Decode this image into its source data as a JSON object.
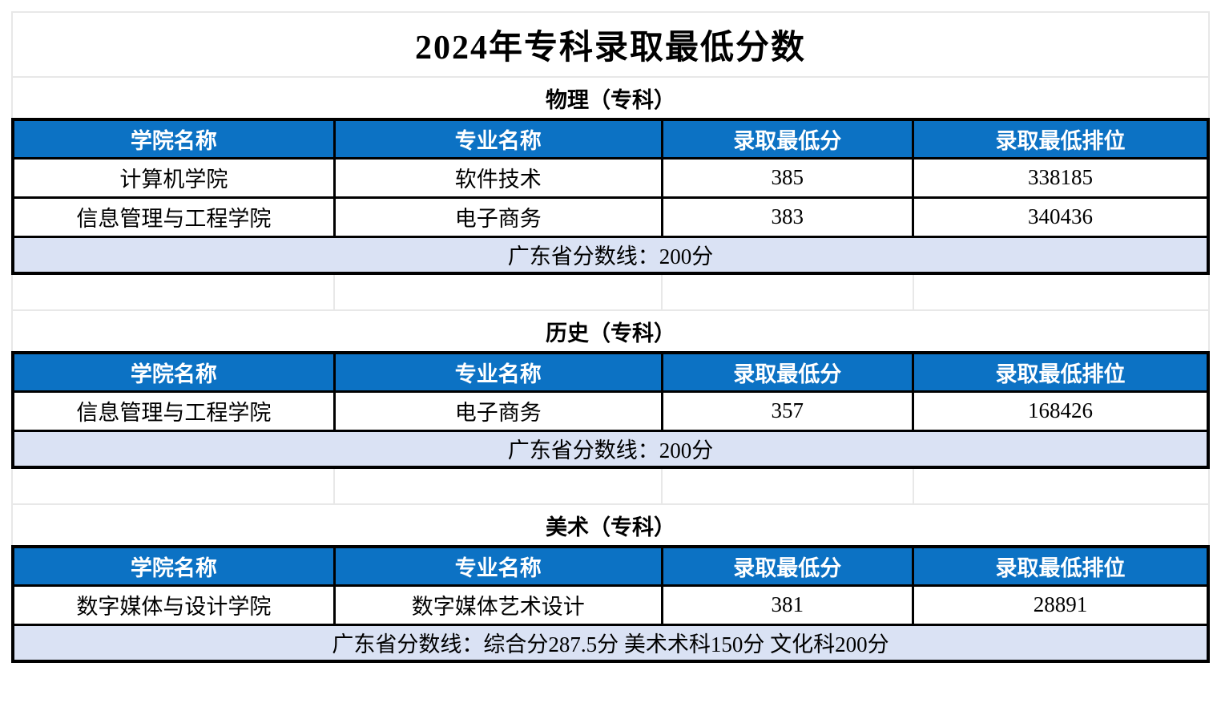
{
  "title": "2024年专科录取最低分数",
  "columns": [
    "学院名称",
    "专业名称",
    "录取最低分",
    "录取最低排位"
  ],
  "sections": [
    {
      "title": "物理（专科）",
      "rows": [
        {
          "college": "计算机学院",
          "major": "软件技术",
          "min_score": "385",
          "min_rank": "338185"
        },
        {
          "college": "信息管理与工程学院",
          "major": "电子商务",
          "min_score": "383",
          "min_rank": "340436"
        }
      ],
      "note": "广东省分数线：200分"
    },
    {
      "title": "历史（专科）",
      "rows": [
        {
          "college": "信息管理与工程学院",
          "major": "电子商务",
          "min_score": "357",
          "min_rank": "168426"
        }
      ],
      "note": "广东省分数线：200分"
    },
    {
      "title": "美术（专科）",
      "rows": [
        {
          "college": "数字媒体与设计学院",
          "major": "数字媒体艺术设计",
          "min_score": "381",
          "min_rank": "28891"
        }
      ],
      "note": "广东省分数线：综合分287.5分  美术术科150分  文化科200分"
    }
  ],
  "colors": {
    "header_bg": "#0c72c4",
    "note_bg": "#dae2f4",
    "grid_line": "#e8e8e8",
    "table_border": "#000000"
  }
}
